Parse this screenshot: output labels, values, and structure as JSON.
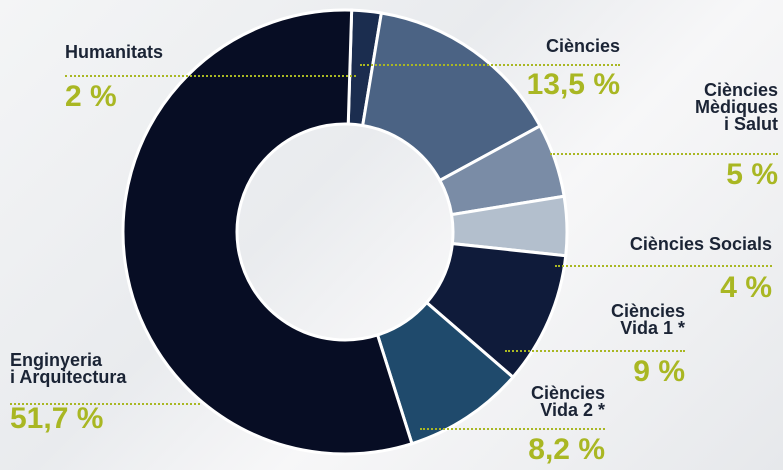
{
  "chart_data": {
    "type": "donut",
    "categories": [
      "Humanitats",
      "Ciències",
      "Ciències\nMèdiques\ni Salut",
      "Ciències Socials",
      "Ciències\nVida 1 *",
      "Ciències\nVida 2 *",
      "Enginyeria\ni Arquitectura"
    ],
    "values": [
      2,
      13.5,
      5,
      4,
      9,
      8.2,
      51.7
    ],
    "value_labels": [
      "2 %",
      "13,5 %",
      "5 %",
      "4 %",
      "9 %",
      "8,2 %",
      "51,7 %"
    ],
    "colors": [
      "#1b2d4f",
      "#4b6384",
      "#7a8ca6",
      "#b3bfcd",
      "#0f1b3a",
      "#1f4a6c",
      "#070d24"
    ]
  }
}
